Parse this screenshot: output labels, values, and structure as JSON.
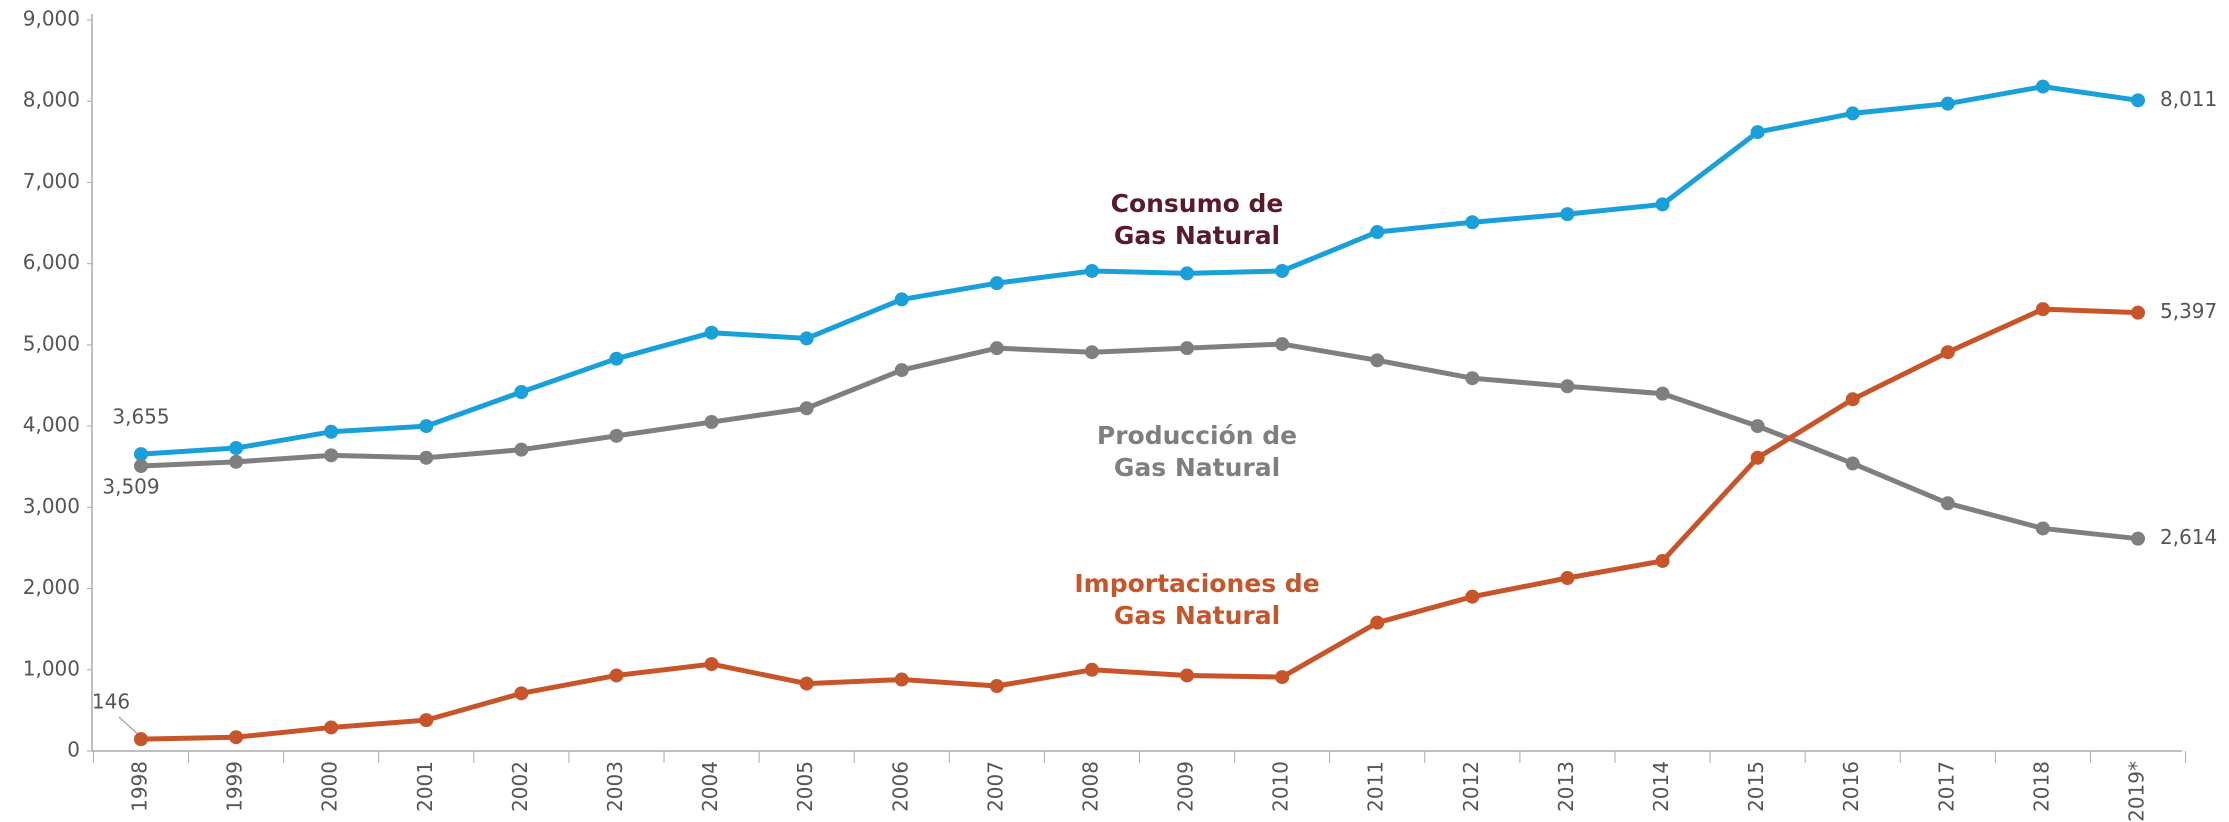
{
  "chart_data": {
    "type": "line",
    "categories": [
      "1998",
      "1999",
      "2000",
      "2001",
      "2002",
      "2003",
      "2004",
      "2005",
      "2006",
      "2007",
      "2008",
      "2009",
      "2010",
      "2011",
      "2012",
      "2013",
      "2014",
      "2015",
      "2016",
      "2017",
      "2018",
      "2019*"
    ],
    "ylim": [
      0,
      9000
    ],
    "yticks": [
      0,
      {
        "value": 1000,
        "label": "1,000"
      },
      {
        "value": 2000,
        "label": "2,000"
      },
      {
        "value": 3000,
        "label": "3,000"
      },
      {
        "value": 4000,
        "label": "4,000"
      },
      {
        "value": 5000,
        "label": "5,000"
      },
      {
        "value": 6000,
        "label": "6,000"
      },
      {
        "value": 7000,
        "label": "7,000"
      },
      {
        "value": 8000,
        "label": "8,000"
      },
      {
        "value": 9000,
        "label": "9,000"
      }
    ],
    "series": [
      {
        "name": "Consumo de\nGas Natural",
        "color": "#1aa0d8",
        "label_color": "#5a1a2a",
        "values": [
          3655,
          3730,
          3930,
          4000,
          4420,
          4830,
          5150,
          5080,
          5560,
          5760,
          5910,
          5880,
          5910,
          6390,
          6510,
          6610,
          6730,
          7620,
          7850,
          7970,
          8180,
          8011
        ],
        "value_labels": [
          "3,655",
          null,
          null,
          null,
          null,
          null,
          null,
          null,
          null,
          null,
          null,
          null,
          null,
          null,
          null,
          null,
          null,
          null,
          null,
          null,
          null,
          "8,011"
        ]
      },
      {
        "name": "Producción de\nGas Natural",
        "color": "#7f7f7f",
        "label_color": "#7f7f7f",
        "values": [
          3509,
          3560,
          3640,
          3610,
          3710,
          3880,
          4050,
          4220,
          4690,
          4960,
          4910,
          4960,
          5010,
          4810,
          4590,
          4490,
          4400,
          4000,
          3540,
          3050,
          2740,
          2614
        ],
        "value_labels": [
          "3,509",
          null,
          null,
          null,
          null,
          null,
          null,
          null,
          null,
          null,
          null,
          null,
          null,
          null,
          null,
          null,
          null,
          null,
          null,
          null,
          null,
          "2,614"
        ]
      },
      {
        "name": "Importaciones de\nGas Natural",
        "color": "#c8552a",
        "label_color": "#c8552a",
        "values": [
          146,
          170,
          290,
          380,
          710,
          930,
          1070,
          830,
          880,
          800,
          1000,
          930,
          910,
          1580,
          1900,
          2130,
          2340,
          3610,
          4330,
          4910,
          5440,
          5397
        ],
        "value_labels": [
          "146",
          null,
          null,
          null,
          null,
          null,
          null,
          null,
          null,
          null,
          null,
          null,
          null,
          null,
          null,
          null,
          null,
          null,
          null,
          null,
          null,
          "5,397"
        ]
      }
    ]
  }
}
